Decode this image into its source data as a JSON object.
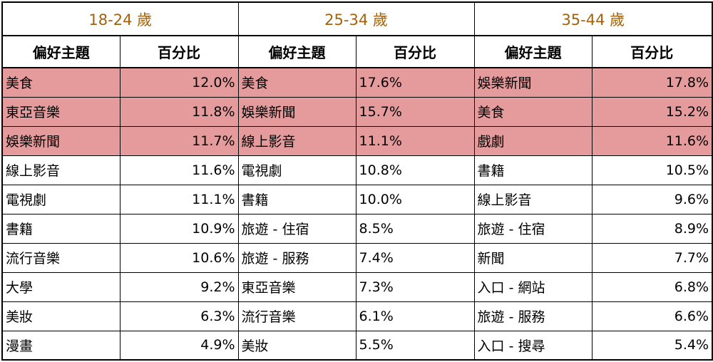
{
  "colors": {
    "highlight": "#e59b9b",
    "age_header_text": "#a5620a"
  },
  "groups": [
    {
      "age_label": "18-24 歲",
      "topic_header": "偏好主題",
      "pct_header": "百分比",
      "rows": [
        {
          "topic": "美食",
          "pct": "12.0%",
          "highlighted": true
        },
        {
          "topic": "東亞音樂",
          "pct": "11.8%",
          "highlighted": true
        },
        {
          "topic": "娛樂新聞",
          "pct": "11.7%",
          "highlighted": true
        },
        {
          "topic": "線上影音",
          "pct": "11.6%",
          "highlighted": false
        },
        {
          "topic": "電視劇",
          "pct": "11.1%",
          "highlighted": false
        },
        {
          "topic": "書籍",
          "pct": "10.9%",
          "highlighted": false
        },
        {
          "topic": "流行音樂",
          "pct": "10.6%",
          "highlighted": false
        },
        {
          "topic": "大學",
          "pct": "9.2%",
          "highlighted": false
        },
        {
          "topic": "美妝",
          "pct": "6.3%",
          "highlighted": false
        },
        {
          "topic": "漫畫",
          "pct": "4.9%",
          "highlighted": false
        }
      ]
    },
    {
      "age_label": "25-34 歲",
      "topic_header": "偏好主題",
      "pct_header": "百分比",
      "rows": [
        {
          "topic": "美食",
          "pct": "17.6%",
          "highlighted": true
        },
        {
          "topic": "娛樂新聞",
          "pct": "15.7%",
          "highlighted": true
        },
        {
          "topic": "線上影音",
          "pct": "11.1%",
          "highlighted": true
        },
        {
          "topic": "電視劇",
          "pct": "10.8%",
          "highlighted": false
        },
        {
          "topic": "書籍",
          "pct": "10.0%",
          "highlighted": false
        },
        {
          "topic": "旅遊 - 住宿",
          "pct": "8.5%",
          "highlighted": false
        },
        {
          "topic": "旅遊 - 服務",
          "pct": "7.4%",
          "highlighted": false
        },
        {
          "topic": "東亞音樂",
          "pct": "7.3%",
          "highlighted": false
        },
        {
          "topic": "流行音樂",
          "pct": "6.1%",
          "highlighted": false
        },
        {
          "topic": "美妝",
          "pct": "5.5%",
          "highlighted": false
        }
      ]
    },
    {
      "age_label": "35-44 歲",
      "topic_header": "偏好主題",
      "pct_header": "百分比",
      "rows": [
        {
          "topic": "娛樂新聞",
          "pct": "17.8%",
          "highlighted": true
        },
        {
          "topic": "美食",
          "pct": "15.2%",
          "highlighted": true
        },
        {
          "topic": "戲劇",
          "pct": "11.6%",
          "highlighted": true
        },
        {
          "topic": "書籍",
          "pct": "10.5%",
          "highlighted": false
        },
        {
          "topic": "線上影音",
          "pct": "9.6%",
          "highlighted": false
        },
        {
          "topic": "旅遊 - 住宿",
          "pct": "8.9%",
          "highlighted": false
        },
        {
          "topic": "新聞",
          "pct": "7.7%",
          "highlighted": false
        },
        {
          "topic": "入口 - 網站",
          "pct": "6.8%",
          "highlighted": false
        },
        {
          "topic": "旅遊 - 服務",
          "pct": "6.6%",
          "highlighted": false
        },
        {
          "topic": "入口 - 搜尋",
          "pct": "5.4%",
          "highlighted": false
        }
      ]
    }
  ]
}
